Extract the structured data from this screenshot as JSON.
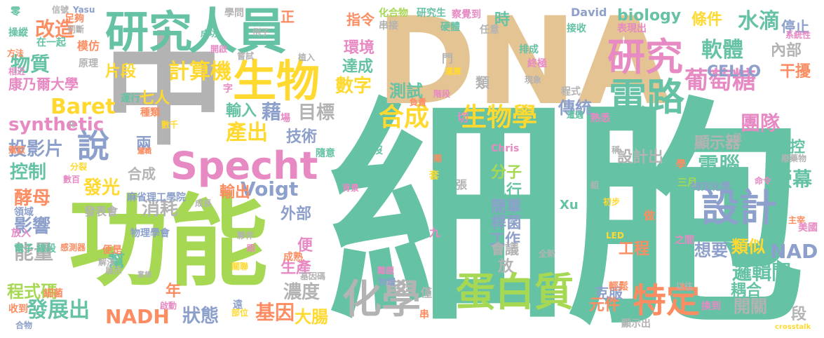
{
  "colors": {
    "teal": "#66c2a5",
    "orange": "#fc8d62",
    "blue": "#8da0cb",
    "pink": "#e78ac3",
    "green": "#a6d854",
    "yellow": "#ffd92f",
    "tan": "#e5c494",
    "gray": "#b3b3b3"
  },
  "words": [
    {
      "text": "細胞",
      "color": "teal"
    },
    {
      "text": "DNA",
      "color": "tan"
    },
    {
      "text": "功能",
      "color": "green"
    },
    {
      "text": "中",
      "color": "gray"
    },
    {
      "text": "研究",
      "color": "teal"
    },
    {
      "text": "人員",
      "color": "teal"
    },
    {
      "text": "生物",
      "color": "yellow"
    },
    {
      "text": "Specht",
      "color": "pink"
    },
    {
      "text": "電路",
      "color": "teal"
    },
    {
      "text": "研究",
      "color": "pink"
    },
    {
      "text": "設計",
      "color": "blue"
    },
    {
      "text": "蛋白質",
      "color": "green"
    },
    {
      "text": "特定",
      "color": "orange"
    },
    {
      "text": "化學",
      "color": "gray"
    },
    {
      "text": "說",
      "color": "blue"
    },
    {
      "text": "合成",
      "color": "yellow"
    },
    {
      "text": "生物學",
      "color": "yellow"
    },
    {
      "text": "改造",
      "color": "orange"
    },
    {
      "text": "物質",
      "color": "teal"
    },
    {
      "text": "Baret",
      "color": "yellow"
    },
    {
      "text": "synthetic",
      "color": "pink"
    },
    {
      "text": "投影片",
      "color": "blue"
    },
    {
      "text": "控制",
      "color": "teal"
    },
    {
      "text": "酵母",
      "color": "orange"
    },
    {
      "text": "影響",
      "color": "blue"
    },
    {
      "text": "能量",
      "color": "gray"
    },
    {
      "text": "程式碼",
      "color": "green"
    },
    {
      "text": "發展出",
      "color": "teal"
    },
    {
      "text": "計算機",
      "color": "yellow"
    },
    {
      "text": "片段",
      "color": "yellow"
    },
    {
      "text": "康乃爾大學",
      "color": "pink"
    },
    {
      "text": "七人",
      "color": "yellow"
    },
    {
      "text": "產出",
      "color": "yellow"
    },
    {
      "text": "目標",
      "color": "gray"
    },
    {
      "text": "藉",
      "color": "blue"
    },
    {
      "text": "輸入",
      "color": "teal"
    },
    {
      "text": "數字",
      "color": "yellow"
    },
    {
      "text": "達成",
      "color": "teal"
    },
    {
      "text": "測試",
      "color": "teal"
    },
    {
      "text": "環境",
      "color": "pink"
    },
    {
      "text": "指令",
      "color": "orange"
    },
    {
      "text": "軟體",
      "color": "teal"
    },
    {
      "text": "水滴",
      "color": "teal"
    },
    {
      "text": "葡萄糖",
      "color": "pink"
    },
    {
      "text": "傳統",
      "color": "blue"
    },
    {
      "text": "團隊",
      "color": "pink"
    },
    {
      "text": "操控",
      "color": "teal"
    },
    {
      "text": "顯示器",
      "color": "gray"
    },
    {
      "text": "電腦",
      "color": "teal"
    },
    {
      "text": "螢幕",
      "color": "teal"
    },
    {
      "text": "NAD",
      "color": "blue"
    },
    {
      "text": "邏輯閘",
      "color": "teal"
    },
    {
      "text": "類似",
      "color": "yellow"
    },
    {
      "text": "耦合",
      "color": "teal"
    },
    {
      "text": "想要",
      "color": "blue"
    },
    {
      "text": "開關",
      "color": "gray"
    },
    {
      "text": "工程",
      "color": "orange"
    },
    {
      "text": "克服",
      "color": "blue"
    },
    {
      "text": "元件",
      "color": "orange"
    },
    {
      "text": "濃度",
      "color": "gray"
    },
    {
      "text": "基因",
      "color": "orange"
    },
    {
      "text": "大腸",
      "color": "yellow"
    },
    {
      "text": "NADH",
      "color": "orange"
    },
    {
      "text": "狀態",
      "color": "blue"
    },
    {
      "text": "Voigt",
      "color": "blue"
    },
    {
      "text": "外部",
      "color": "blue"
    },
    {
      "text": "消耗",
      "color": "gray"
    },
    {
      "text": "發光",
      "color": "yellow"
    },
    {
      "text": "輸出",
      "color": "orange"
    },
    {
      "text": "技術",
      "color": "blue"
    },
    {
      "text": "分子",
      "color": "green"
    },
    {
      "text": "執行",
      "color": "teal"
    },
    {
      "text": "簡單",
      "color": "blue"
    },
    {
      "text": "桿菌",
      "color": "blue"
    },
    {
      "text": "工作",
      "color": "blue"
    },
    {
      "text": "設計出",
      "color": "gray"
    },
    {
      "text": "CELLO",
      "color": "blue"
    },
    {
      "text": "biology",
      "color": "teal"
    },
    {
      "text": "條件",
      "color": "yellow"
    },
    {
      "text": "停止",
      "color": "blue"
    },
    {
      "text": "內部",
      "color": "gray"
    },
    {
      "text": "干擾",
      "color": "orange"
    },
    {
      "text": "時",
      "color": "teal"
    },
    {
      "text": "正",
      "color": "orange"
    },
    {
      "text": "生產",
      "color": "pink"
    },
    {
      "text": "便",
      "color": "pink"
    },
    {
      "text": "會議",
      "color": "gray"
    },
    {
      "text": "年",
      "color": "orange"
    },
    {
      "text": "幫",
      "color": "teal"
    },
    {
      "text": "兩",
      "color": "blue"
    },
    {
      "text": "合成",
      "color": "gray"
    },
    {
      "text": "麻省理工學院",
      "color": "blue"
    },
    {
      "text": "發表會",
      "color": "gray"
    },
    {
      "text": "物理學會",
      "color": "blue"
    },
    {
      "text": "更",
      "color": "gray"
    },
    {
      "text": "放",
      "color": "gray"
    },
    {
      "text": "段",
      "color": "gray"
    },
    {
      "text": "三月",
      "color": "green"
    },
    {
      "text": "類",
      "color": "gray"
    },
    {
      "text": "Xu",
      "color": "teal"
    },
    {
      "text": "David",
      "color": "blue"
    },
    {
      "text": "Chris",
      "color": "pink"
    },
    {
      "text": "LED",
      "color": "yellow"
    },
    {
      "text": "crosstalk",
      "color": "yellow"
    },
    {
      "text": "Yasu",
      "color": "blue"
    },
    {
      "text": "信號",
      "color": "gray"
    },
    {
      "text": "零",
      "color": "teal"
    },
    {
      "text": "操縱",
      "color": "teal"
    },
    {
      "text": "方法",
      "color": "orange"
    },
    {
      "text": "相近",
      "color": "pink"
    },
    {
      "text": "駕馭",
      "color": "orange"
    },
    {
      "text": "足夠",
      "color": "orange"
    },
    {
      "text": "判斷",
      "color": "gray"
    },
    {
      "text": "在一起",
      "color": "teal"
    },
    {
      "text": "模仿",
      "color": "orange"
    },
    {
      "text": "原理",
      "color": "gray"
    },
    {
      "text": "學問",
      "color": "gray"
    },
    {
      "text": "成功",
      "color": "teal"
    },
    {
      "text": "例子",
      "color": "gray"
    },
    {
      "text": "開啟",
      "color": "pink"
    },
    {
      "text": "嘗試",
      "color": "gray"
    },
    {
      "text": "化合物",
      "color": "green"
    },
    {
      "text": "研究生",
      "color": "teal"
    },
    {
      "text": "察覺到",
      "color": "pink"
    },
    {
      "text": "硬體",
      "color": "teal"
    },
    {
      "text": "任意",
      "color": "gray"
    },
    {
      "text": "排成",
      "color": "teal"
    },
    {
      "text": "終極",
      "color": "pink"
    },
    {
      "text": "運算",
      "color": "yellow"
    },
    {
      "text": "現象",
      "color": "gray"
    },
    {
      "text": "接收",
      "color": "teal"
    },
    {
      "text": "表現出",
      "color": "pink"
    },
    {
      "text": "系統性",
      "color": "pink"
    },
    {
      "text": "運行",
      "color": "teal"
    },
    {
      "text": "種類",
      "color": "orange"
    },
    {
      "text": "數千",
      "color": "yellow"
    },
    {
      "text": "字",
      "color": "pink"
    },
    {
      "text": "階段",
      "color": "pink"
    },
    {
      "text": "負責",
      "color": "orange"
    },
    {
      "text": "場",
      "color": "pink"
    },
    {
      "text": "程式",
      "color": "gray"
    },
    {
      "text": "遭遇",
      "color": "teal"
    },
    {
      "text": "熟悉",
      "color": "pink"
    },
    {
      "text": "掌控",
      "color": "teal"
    },
    {
      "text": "七段",
      "color": "gray"
    },
    {
      "text": "廢藥物",
      "color": "gray"
    },
    {
      "text": "隨意",
      "color": "teal"
    },
    {
      "text": "淹沒",
      "color": "teal"
    },
    {
      "text": "特定化學",
      "color": "blue"
    },
    {
      "text": "主宰",
      "color": "orange"
    },
    {
      "text": "美國",
      "color": "pink"
    },
    {
      "text": "初步",
      "color": "yellow"
    },
    {
      "text": "成長",
      "color": "gray"
    },
    {
      "text": "夥伴",
      "color": "gray"
    },
    {
      "text": "背景",
      "color": "pink"
    },
    {
      "text": "領域",
      "color": "blue"
    },
    {
      "text": "放入",
      "color": "pink"
    },
    {
      "text": "電子",
      "color": "teal"
    },
    {
      "text": "線段",
      "color": "teal"
    },
    {
      "text": "感測器",
      "color": "orange"
    },
    {
      "text": "便是",
      "color": "orange"
    },
    {
      "text": "解決",
      "color": "gray"
    },
    {
      "text": "展示",
      "color": "gray"
    },
    {
      "text": "意想",
      "color": "gray"
    },
    {
      "text": "成熟",
      "color": "orange"
    },
    {
      "text": "基因碼",
      "color": "gray"
    },
    {
      "text": "難題",
      "color": "pink"
    },
    {
      "text": "物理",
      "color": "blue"
    },
    {
      "text": "關聯",
      "color": "yellow"
    },
    {
      "text": "細菌",
      "color": "orange"
    },
    {
      "text": "收到",
      "color": "orange"
    },
    {
      "text": "合物",
      "color": "blue"
    },
    {
      "text": "啟動",
      "color": "pink"
    },
    {
      "text": "部位",
      "color": "yellow"
    },
    {
      "text": "遠",
      "color": "blue"
    },
    {
      "text": "全新",
      "color": "gray"
    },
    {
      "text": "僅",
      "color": "gray"
    },
    {
      "text": "串",
      "color": "orange"
    },
    {
      "text": "輕鬆",
      "color": "orange"
    },
    {
      "text": "換到",
      "color": "pink"
    },
    {
      "text": "以往",
      "color": "gray"
    },
    {
      "text": "顯示出",
      "color": "gray"
    },
    {
      "text": "之間",
      "color": "pink"
    },
    {
      "text": "做",
      "color": "orange"
    },
    {
      "text": "張",
      "color": "gray"
    },
    {
      "text": "九",
      "color": "pink"
    },
    {
      "text": "套",
      "color": "yellow"
    },
    {
      "text": "關",
      "color": "orange"
    },
    {
      "text": "稱",
      "color": "gray"
    },
    {
      "text": "切",
      "color": "pink"
    },
    {
      "text": "組",
      "color": "gray"
    },
    {
      "text": "命令",
      "color": "pink"
    },
    {
      "text": "化",
      "color": "gray"
    },
    {
      "text": "門",
      "color": "gray"
    },
    {
      "text": "植入",
      "color": "gray"
    },
    {
      "text": "數百",
      "color": "pink"
    },
    {
      "text": "分裂",
      "color": "yellow"
    },
    {
      "text": "邏輯",
      "color": "orange"
    },
    {
      "text": "眼",
      "color": "pink"
    },
    {
      "text": "學",
      "color": "orange"
    },
    {
      "text": "串接",
      "color": "gray"
    }
  ]
}
